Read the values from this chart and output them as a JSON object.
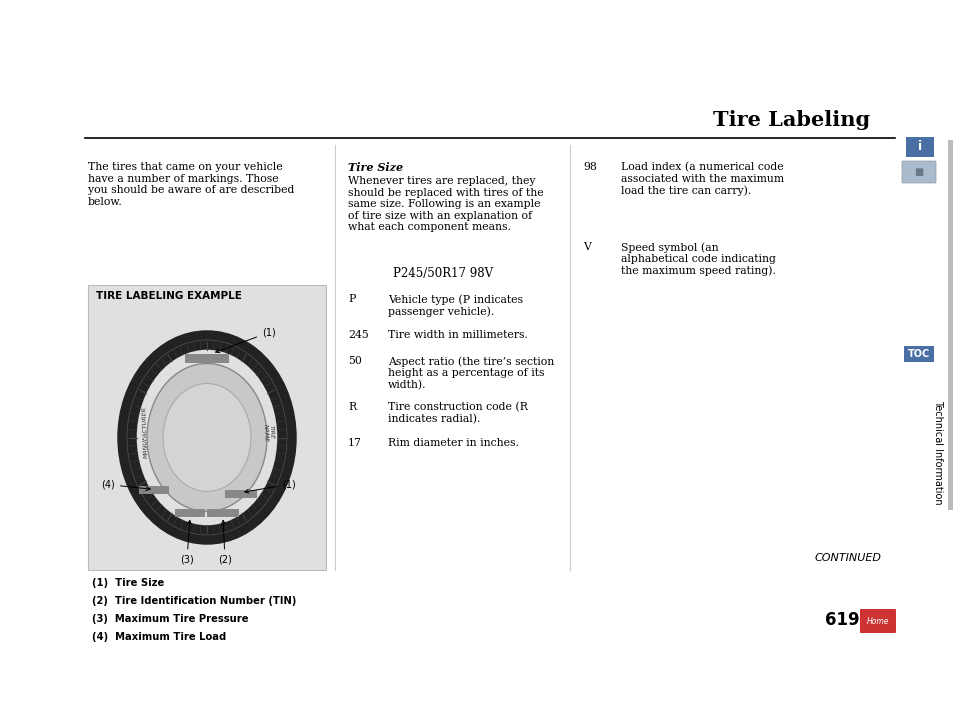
{
  "bg_color": "#ffffff",
  "title": "Tire Labeling",
  "title_fontsize": 15,
  "page_number": "619",
  "continued_text": "CONTINUED",
  "col1_intro": "The tires that came on your vehicle\nhave a number of markings. Those\nyou should be aware of are described\nbelow.",
  "diagram_box_title": "TIRE LABELING EXAMPLE",
  "diagram_labels": [
    "(1)  Tire Size",
    "(2)  Tire Identification Number (TIN)",
    "(3)  Maximum Tire Pressure",
    "(4)  Maximum Tire Load"
  ],
  "col2_title": "Tire Size",
  "col2_intro": "Whenever tires are replaced, they\nshould be replaced with tires of the\nsame size. Following is an example\nof tire size with an explanation of\nwhat each component means.",
  "tire_size_example": "P245/50R17 98V",
  "col2_items": [
    {
      "label": "P",
      "desc": "Vehicle type (P indicates\npassenger vehicle)."
    },
    {
      "label": "245",
      "desc": "Tire width in millimeters."
    },
    {
      "label": "50",
      "desc": "Aspect ratio (the tire’s section\nheight as a percentage of its\nwidth)."
    },
    {
      "label": "R",
      "desc": "Tire construction code (R\nindicates radial)."
    },
    {
      "label": "17",
      "desc": "Rim diameter in inches."
    }
  ],
  "col3_items": [
    {
      "label": "98",
      "desc": "Load index (a numerical code\nassociated with the maximum\nload the tire can carry)."
    },
    {
      "label": "V",
      "desc": "Speed symbol (an\nalphabetical code indicating\nthe maximum speed rating)."
    }
  ],
  "diagram_bg": "#e0e0e0",
  "toc_text": "TOC",
  "technical_info_text": "Technical Information",
  "info_icon_color": "#4a6fa5",
  "toc_color": "#4a6fa5",
  "home_color": "#cc3333",
  "separator_color": "#cccccc",
  "line_color": "#000000"
}
